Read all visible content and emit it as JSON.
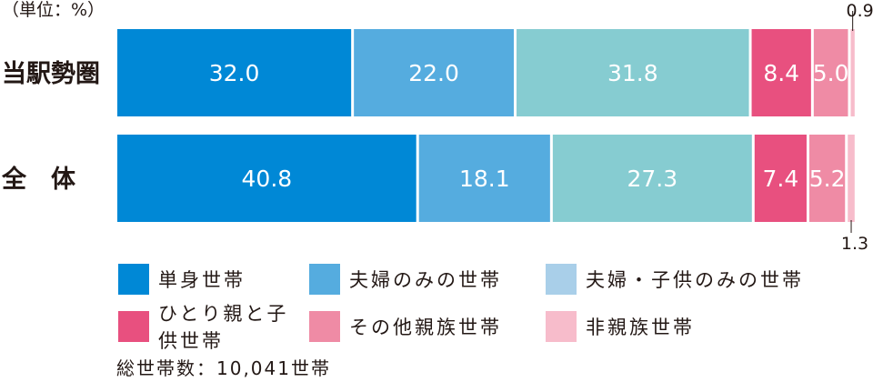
{
  "unit_label": "（単位：%）",
  "total_text": "総世帯数：10,041世帯",
  "chart_data": {
    "type": "bar",
    "orientation": "horizontal",
    "stacked": true,
    "percent": true,
    "categories": [
      "当駅勢圏",
      "全　体"
    ],
    "series": [
      {
        "name": "単身世帯",
        "color": "#0088d6",
        "values": [
          32.0,
          40.8
        ]
      },
      {
        "name": "夫婦のみの世帯",
        "color": "#55acdf",
        "values": [
          22.0,
          18.1
        ]
      },
      {
        "name": "夫婦・子供のみの世帯",
        "color": "#86ccd1",
        "values": [
          31.8,
          27.3
        ]
      },
      {
        "name": "ひとり親と子供世帯",
        "color": "#e8507f",
        "values": [
          8.4,
          7.4
        ]
      },
      {
        "name": "その他親族世帯",
        "color": "#ef8ba5",
        "values": [
          5.0,
          5.2
        ]
      },
      {
        "name": "非親族世帯",
        "color": "#f7bccb",
        "values": [
          0.9,
          1.3
        ]
      }
    ],
    "data_labels": [
      [
        "32.0",
        "22.0",
        "31.8",
        "8.4",
        "5.0",
        "0.9"
      ],
      [
        "40.8",
        "18.1",
        "27.3",
        "7.4",
        "5.2",
        "1.3"
      ]
    ],
    "xlim": [
      0,
      100
    ]
  },
  "legend": [
    {
      "label": "単身世帯",
      "color": "#0088d6"
    },
    {
      "label": "夫婦のみの世帯",
      "color": "#55acdf"
    },
    {
      "label": "夫婦・子供のみの世帯",
      "color": "#a9cfe9"
    },
    {
      "label": "ひとり親と子供世帯",
      "color": "#e8507f"
    },
    {
      "label": "その他親族世帯",
      "color": "#ef8ba5"
    },
    {
      "label": "非親族世帯",
      "color": "#f7bccb"
    }
  ]
}
